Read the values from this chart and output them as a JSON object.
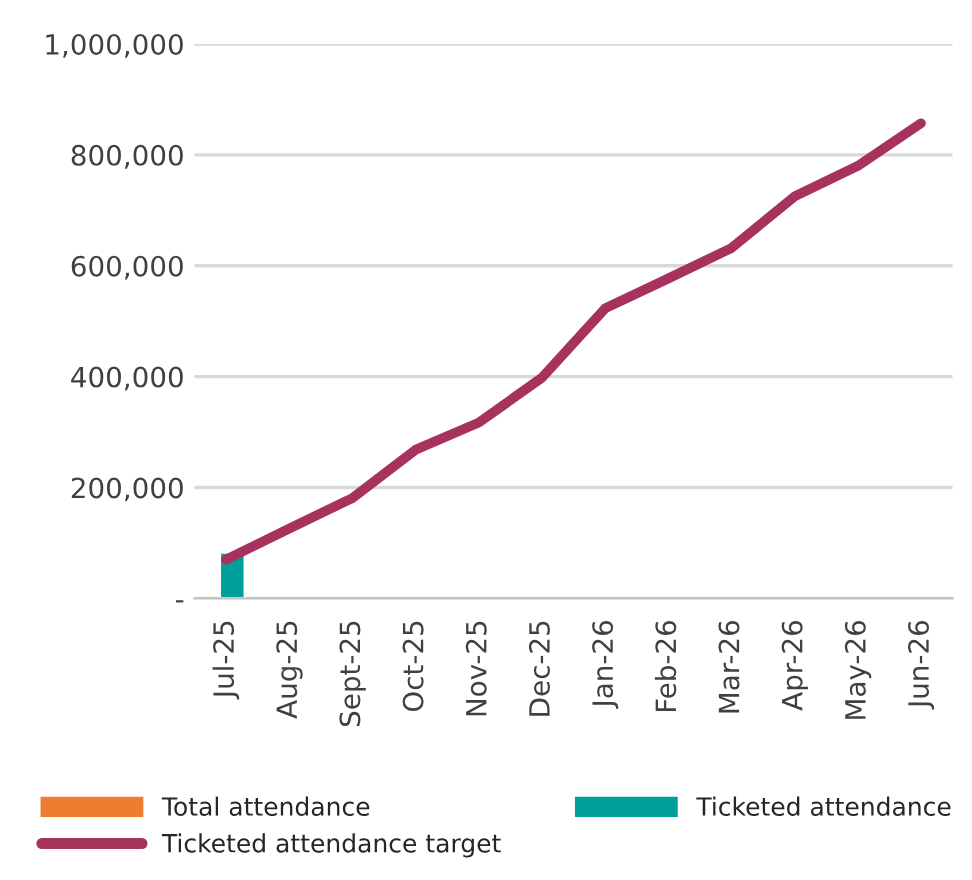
{
  "chart_data": {
    "type": "bar",
    "categories": [
      "Jul-25",
      "Aug-25",
      "Sept-25",
      "Oct-25",
      "Nov-25",
      "Dec-25",
      "Jan-26",
      "Feb-26",
      "Mar-26",
      "Apr-26",
      "May-26",
      "Jun-26"
    ],
    "series": [
      {
        "name": "Total attendance",
        "color": "#ed7d31",
        "values": [
          null,
          null,
          null,
          null,
          null,
          null,
          null,
          null,
          null,
          null,
          null,
          null
        ]
      },
      {
        "name": "Ticketed attendance",
        "color": "#00a09a",
        "values": [
          83000,
          null,
          null,
          null,
          null,
          null,
          null,
          null,
          null,
          null,
          null,
          null
        ]
      },
      {
        "name": "Ticketed attendance target",
        "type": "line",
        "color": "#a8325e",
        "values": [
          70000,
          126000,
          181000,
          268000,
          317000,
          398000,
          523000,
          577000,
          632000,
          725000,
          780000,
          857000
        ]
      }
    ],
    "ylim": [
      0,
      1000000
    ],
    "yticks": [
      {
        "value": 0,
        "label": "-"
      },
      {
        "value": 200000,
        "label": "200,000"
      },
      {
        "value": 400000,
        "label": "400,000"
      },
      {
        "value": 600000,
        "label": "600,000"
      },
      {
        "value": 800000,
        "label": "800,000"
      },
      {
        "value": 1000000,
        "label": "1,000,000"
      }
    ],
    "grid": "y",
    "legend": "bottom"
  }
}
